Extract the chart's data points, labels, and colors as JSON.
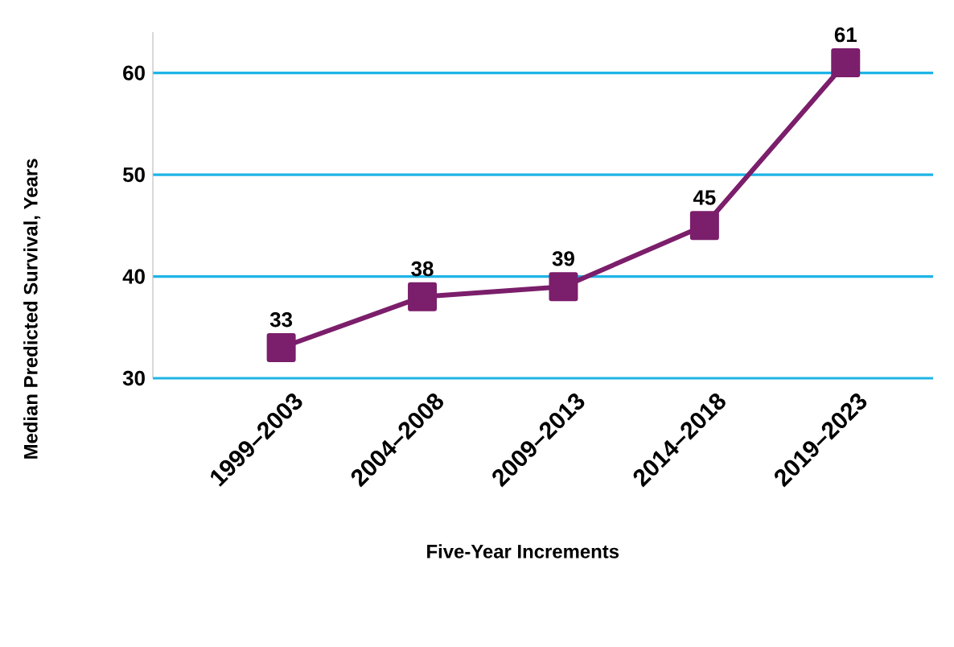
{
  "chart_data": {
    "type": "line",
    "xlabel": "Five-Year  Increments",
    "ylabel": "Median Predicted Survival, Years",
    "categories": [
      "1999–2003",
      "2004–2008",
      "2009–2013",
      "2014–2018",
      "2019–2023"
    ],
    "values": [
      33,
      38,
      39,
      45,
      61
    ],
    "color": "#7b1e6b",
    "ylim": [
      30,
      64
    ],
    "yticks": [
      30,
      40,
      50,
      60
    ],
    "grid": "y",
    "marker": "square",
    "line_style": "solid",
    "data_labels": true
  }
}
